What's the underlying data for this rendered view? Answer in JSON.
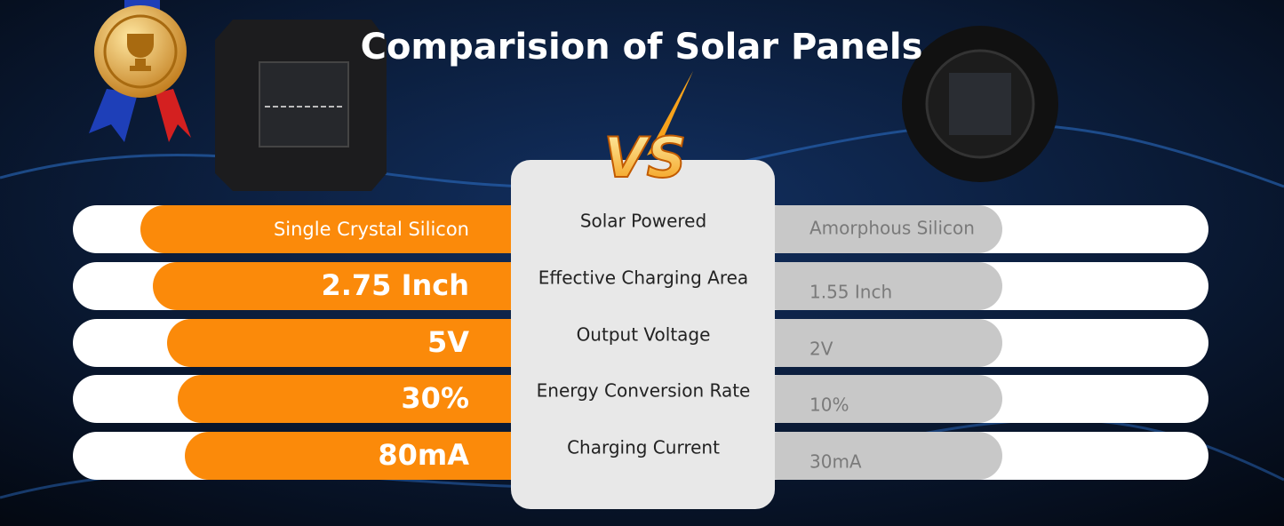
{
  "title": "Comparision of Solar Panels",
  "vs": "VS",
  "rows": [
    {
      "feature": "Solar Powered",
      "left": "Single Crystal Silicon",
      "right": "Amorphous Silicon"
    },
    {
      "feature": "Effective Charging Area",
      "left": "2.75 Inch",
      "right": "1.55 Inch"
    },
    {
      "feature": "Output Voltage",
      "left": "5V",
      "right": "2V"
    },
    {
      "feature": "Energy Conversion Rate",
      "left": "30%",
      "right": "10%"
    },
    {
      "feature": "Charging Current",
      "left": "80mA",
      "right": "30mA"
    }
  ]
}
